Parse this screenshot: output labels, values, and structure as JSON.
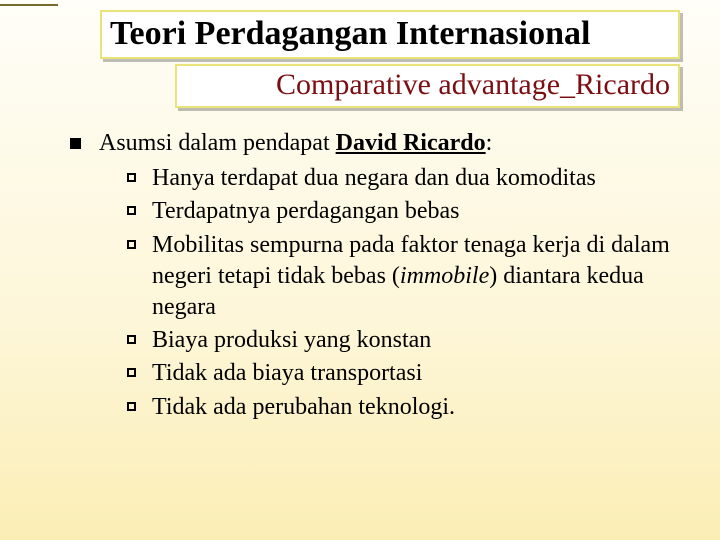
{
  "colors": {
    "title_border": "#e9e37a",
    "subtitle_text": "#7b0e12",
    "body_text": "#000000",
    "bg_top": "#fffef8",
    "bg_bottom": "#fbeeb5"
  },
  "fonts": {
    "family": "Times New Roman",
    "title_size_pt": 26,
    "subtitle_size_pt": 23,
    "body_size_pt": 18
  },
  "title": "Teori Perdagangan Internasional",
  "subtitle": "Comparative advantage_Ricardo",
  "lead_prefix": "Asumsi dalam pendapat ",
  "lead_name": "David Ricardo",
  "lead_suffix": ":",
  "items": [
    {
      "text": "Hanya terdapat dua negara dan dua komoditas"
    },
    {
      "text": "Terdapatnya perdagangan bebas"
    },
    {
      "text": "Mobilitas sempurna pada faktor tenaga kerja di dalam negeri tetapi tidak bebas (",
      "italic": "immobile",
      "tail": ") diantara kedua negara"
    },
    {
      "text": "Biaya produksi yang konstan"
    },
    {
      "text": "Tidak ada biaya transportasi"
    },
    {
      "text": "Tidak ada perubahan teknologi."
    }
  ]
}
